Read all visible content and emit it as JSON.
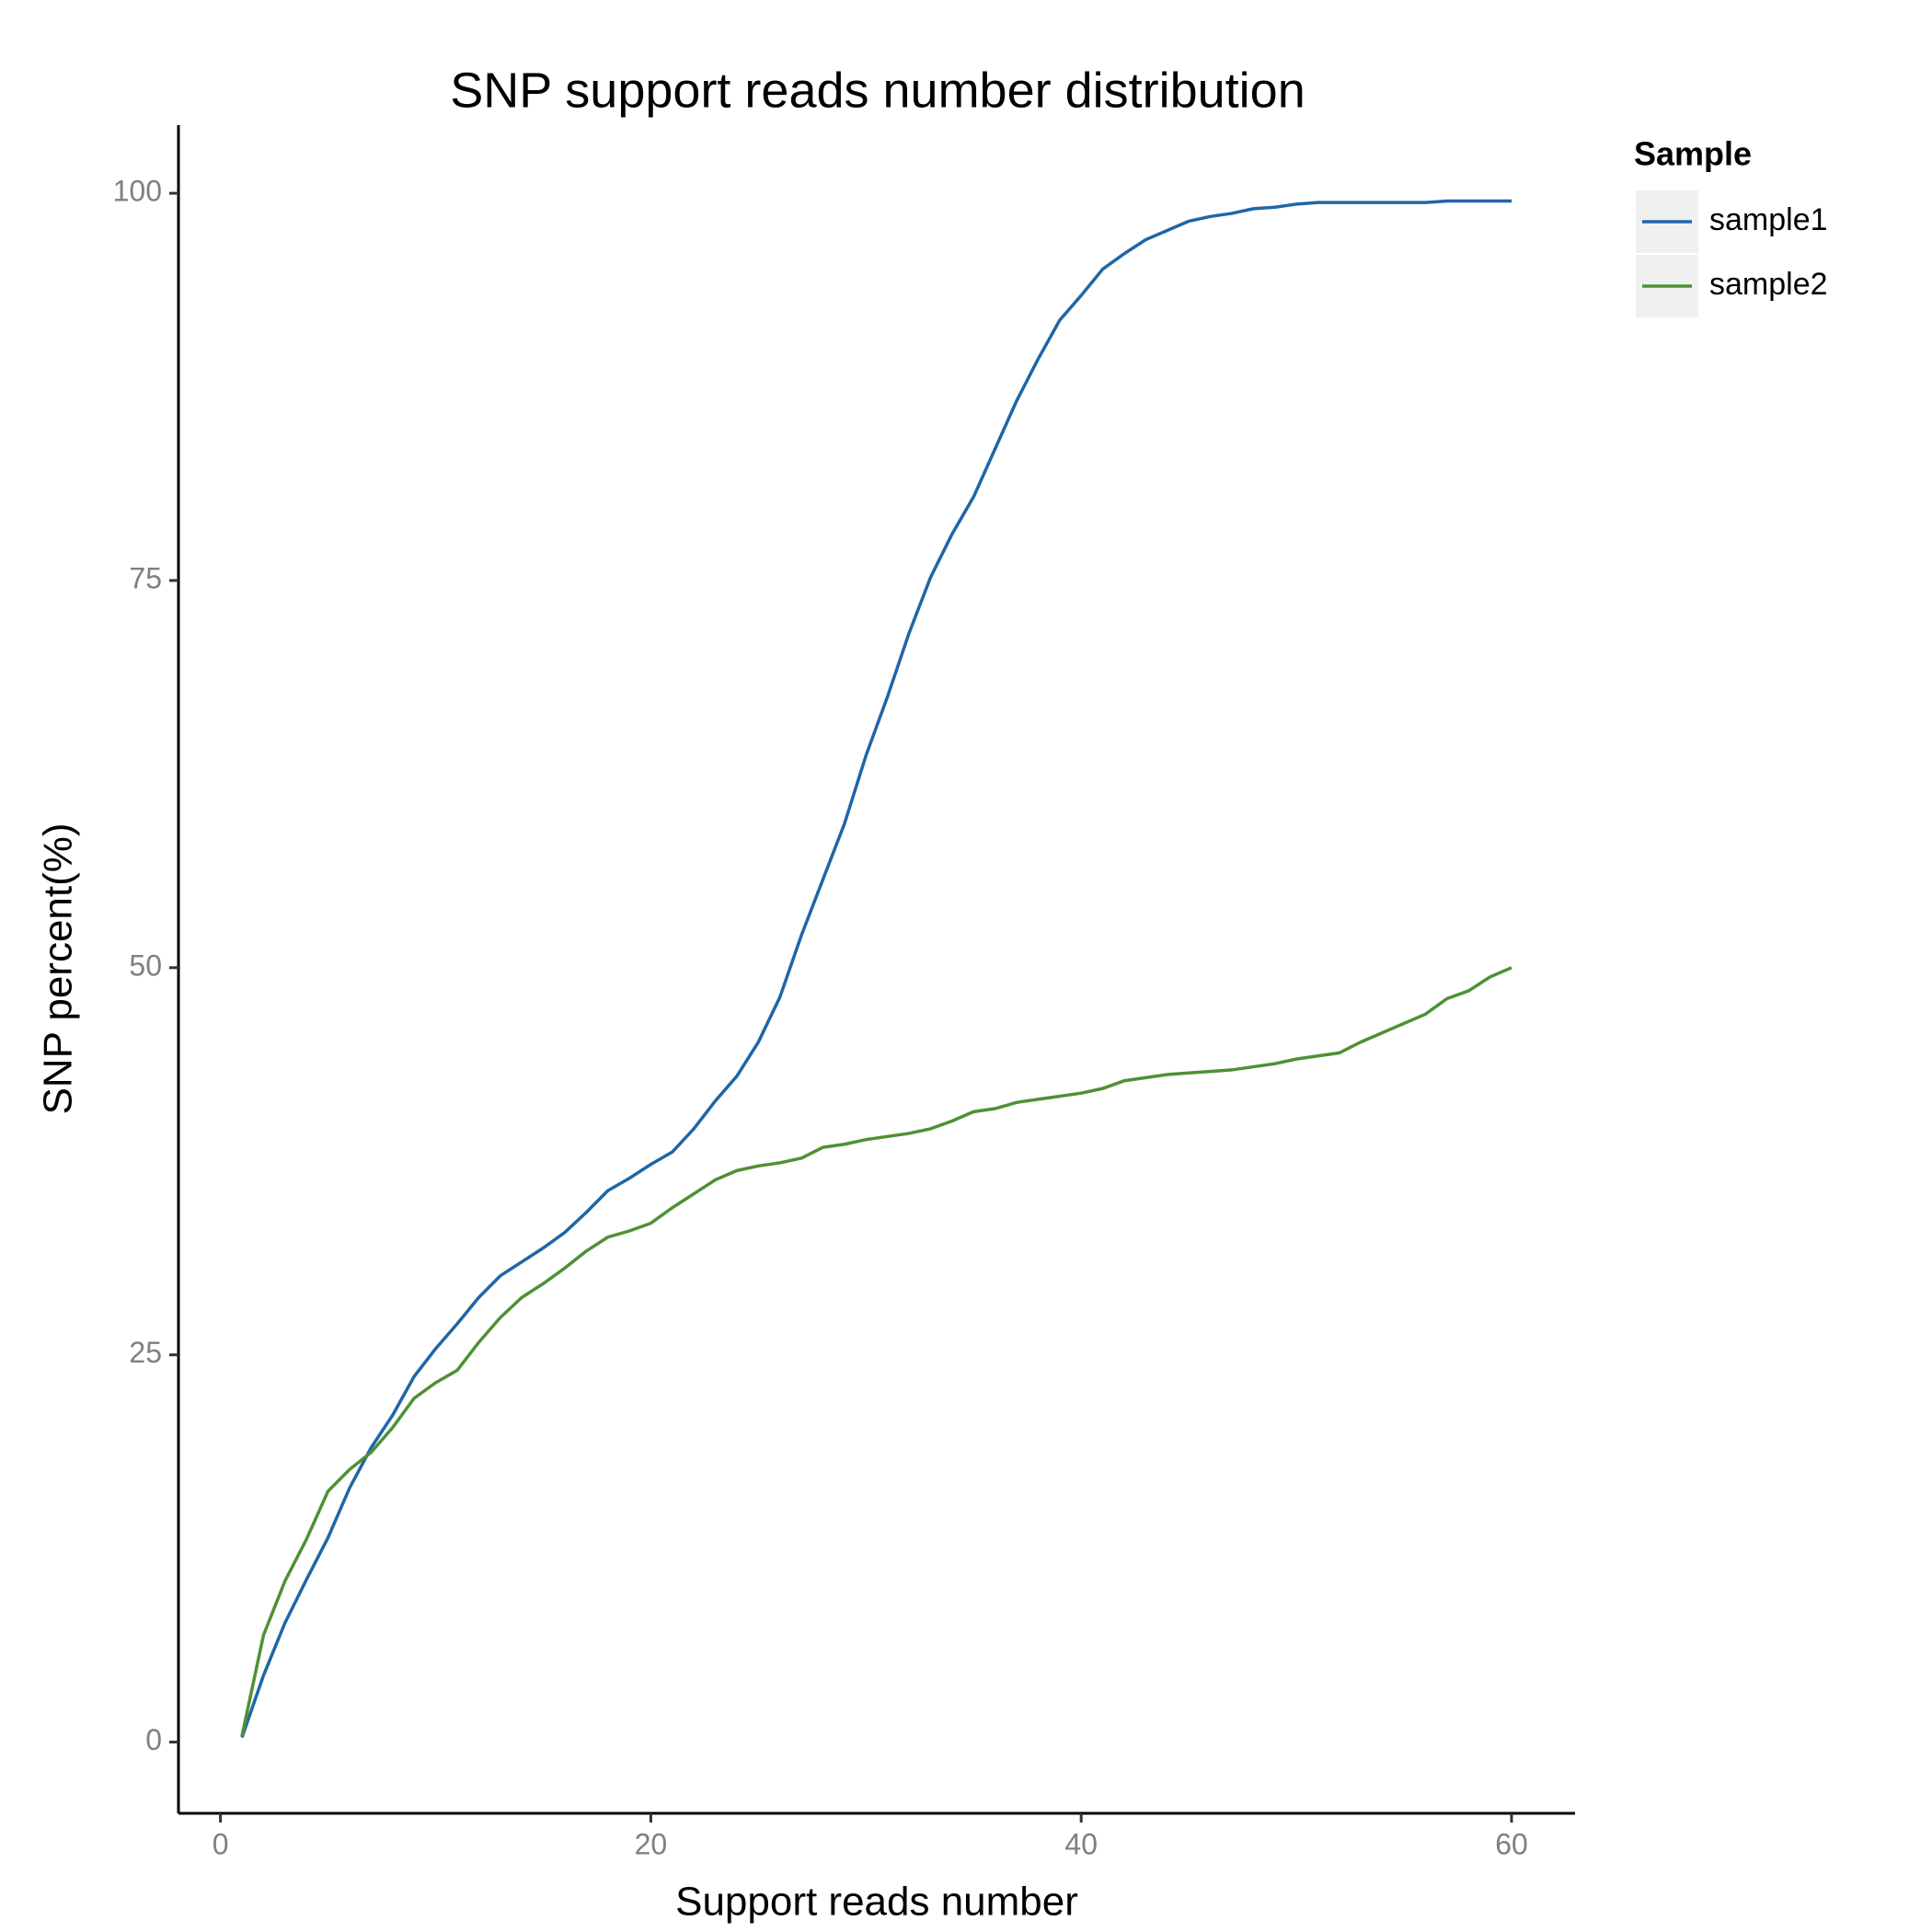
{
  "chart_data": {
    "type": "line",
    "title": "SNP support reads number distribution",
    "x_label": "Support reads number",
    "y_label": "SNP percent(%)",
    "legend_title": "Sample",
    "x": [
      1,
      2,
      3,
      4,
      5,
      6,
      7,
      8,
      9,
      10,
      11,
      12,
      13,
      14,
      15,
      16,
      17,
      18,
      19,
      20,
      21,
      22,
      23,
      24,
      25,
      26,
      27,
      28,
      29,
      30,
      31,
      32,
      33,
      34,
      35,
      36,
      37,
      38,
      39,
      40,
      41,
      42,
      43,
      44,
      45,
      46,
      47,
      48,
      49,
      50,
      51,
      52,
      53,
      54,
      55,
      56,
      57,
      58,
      59,
      60
    ],
    "series": [
      {
        "name": "sample1",
        "color": "#1f66a6",
        "values": [
          0.3,
          4.3,
          7.7,
          10.5,
          13.2,
          16.4,
          19,
          21.1,
          23.6,
          25.4,
          27,
          28.7,
          30.1,
          31,
          31.9,
          32.9,
          34.2,
          35.6,
          36.4,
          37.3,
          38.1,
          39.6,
          41.4,
          43,
          45.2,
          48.1,
          52.1,
          55.7,
          59.3,
          63.7,
          67.5,
          71.6,
          75.2,
          78,
          80.4,
          83.5,
          86.6,
          89.3,
          91.8,
          93.4,
          95.1,
          96.1,
          97,
          97.6,
          98.2,
          98.5,
          98.7,
          99,
          99.1,
          99.3,
          99.4,
          99.4,
          99.4,
          99.4,
          99.4,
          99.4,
          99.5,
          99.5,
          99.5,
          99.5
        ]
      },
      {
        "name": "sample2",
        "color": "#4d9134",
        "values": [
          0.4,
          6.9,
          10.4,
          13.1,
          16.2,
          17.6,
          18.7,
          20.3,
          22.2,
          23.2,
          24,
          25.8,
          27.4,
          28.7,
          29.6,
          30.6,
          31.7,
          32.6,
          33,
          33.5,
          34.5,
          35.4,
          36.3,
          36.9,
          37.2,
          37.4,
          37.7,
          38.4,
          38.6,
          38.9,
          39.1,
          39.3,
          39.6,
          40.1,
          40.7,
          40.9,
          41.3,
          41.5,
          41.7,
          41.9,
          42.2,
          42.7,
          42.9,
          43.1,
          43.2,
          43.3,
          43.4,
          43.6,
          43.8,
          44.1,
          44.3,
          44.5,
          45.2,
          45.8,
          46.4,
          47,
          48,
          48.5,
          49.4,
          50
        ]
      }
    ],
    "xlim": [
      -1.95,
      62.95
    ],
    "ylim": [
      -4.6,
      104.4
    ],
    "xticks": [
      0,
      20,
      40,
      60
    ],
    "yticks": [
      0,
      25,
      50,
      75,
      100
    ],
    "grid": false
  }
}
